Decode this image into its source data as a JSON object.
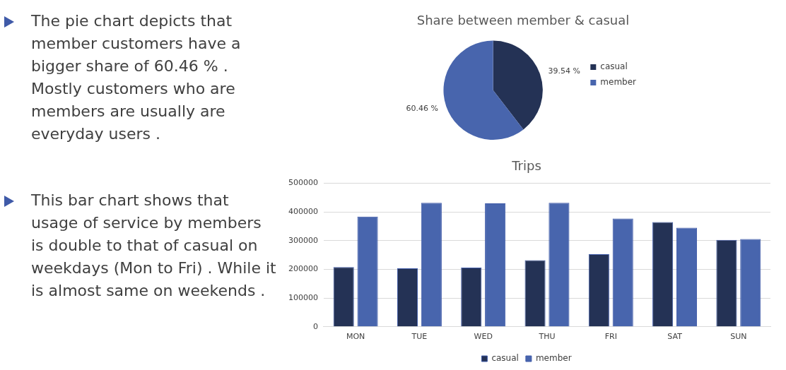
{
  "chart_data": [
    {
      "type": "other",
      "annotations": [
        "The pie chart depicts that member customers have a bigger share of 60.46 % . Mostly  customers who are members are usually are everyday users .",
        "This bar chart shows that usage of service by members is double to that of casual on weekdays (Mon to Fri) . While it is almost same on weekends ."
      ]
    },
    {
      "type": "pie",
      "title": "Share between member & casual",
      "categories": [
        "casual",
        "member"
      ],
      "values": [
        39.54,
        60.46
      ],
      "colors": [
        "#243255",
        "#4865ad"
      ],
      "value_labels": [
        "39.54 %",
        "60.46 %"
      ],
      "legend": "right"
    },
    {
      "type": "bar",
      "title": "Trips",
      "categories": [
        "MON",
        "TUE",
        "WED",
        "THU",
        "FRI",
        "SAT",
        "SUN"
      ],
      "series": [
        {
          "name": "casual",
          "color": "#243255",
          "values": [
            208000,
            204000,
            206000,
            232000,
            253000,
            365000,
            303000
          ]
        },
        {
          "name": "member",
          "color": "#4865ad",
          "values": [
            384000,
            432000,
            430000,
            432000,
            377000,
            345000,
            306000
          ]
        }
      ],
      "ylim": [
        0,
        500000
      ],
      "yticks": [
        0,
        100000,
        200000,
        300000,
        400000,
        500000
      ],
      "grid": "y",
      "legend": "bottom"
    }
  ]
}
